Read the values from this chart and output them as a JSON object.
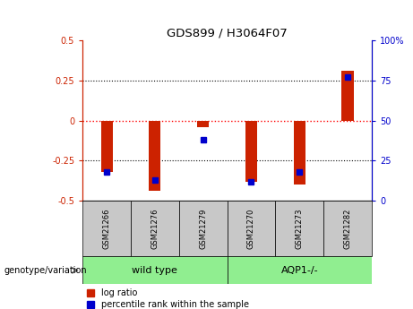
{
  "title": "GDS899 / H3064F07",
  "samples": [
    "GSM21266",
    "GSM21276",
    "GSM21279",
    "GSM21270",
    "GSM21273",
    "GSM21282"
  ],
  "log_ratios": [
    -0.32,
    -0.44,
    -0.04,
    -0.38,
    -0.4,
    0.31
  ],
  "percentile_ranks": [
    18,
    13,
    38,
    12,
    18,
    77
  ],
  "wildtype_color": "#90EE90",
  "aqp1_color": "#90EE90",
  "bar_color_red": "#CC2200",
  "bar_color_blue": "#0000CC",
  "ylim": [
    -0.5,
    0.5
  ],
  "yticks_left": [
    -0.5,
    -0.25,
    0,
    0.25,
    0.5
  ],
  "yticks_right": [
    0,
    25,
    50,
    75,
    100
  ],
  "left_axis_color": "#CC2200",
  "right_axis_color": "#0000CC",
  "legend_red_label": "log ratio",
  "legend_blue_label": "percentile rank within the sample",
  "group_label": "genotype/variation",
  "sample_box_color": "#C8C8C8",
  "bar_width": 0.35
}
